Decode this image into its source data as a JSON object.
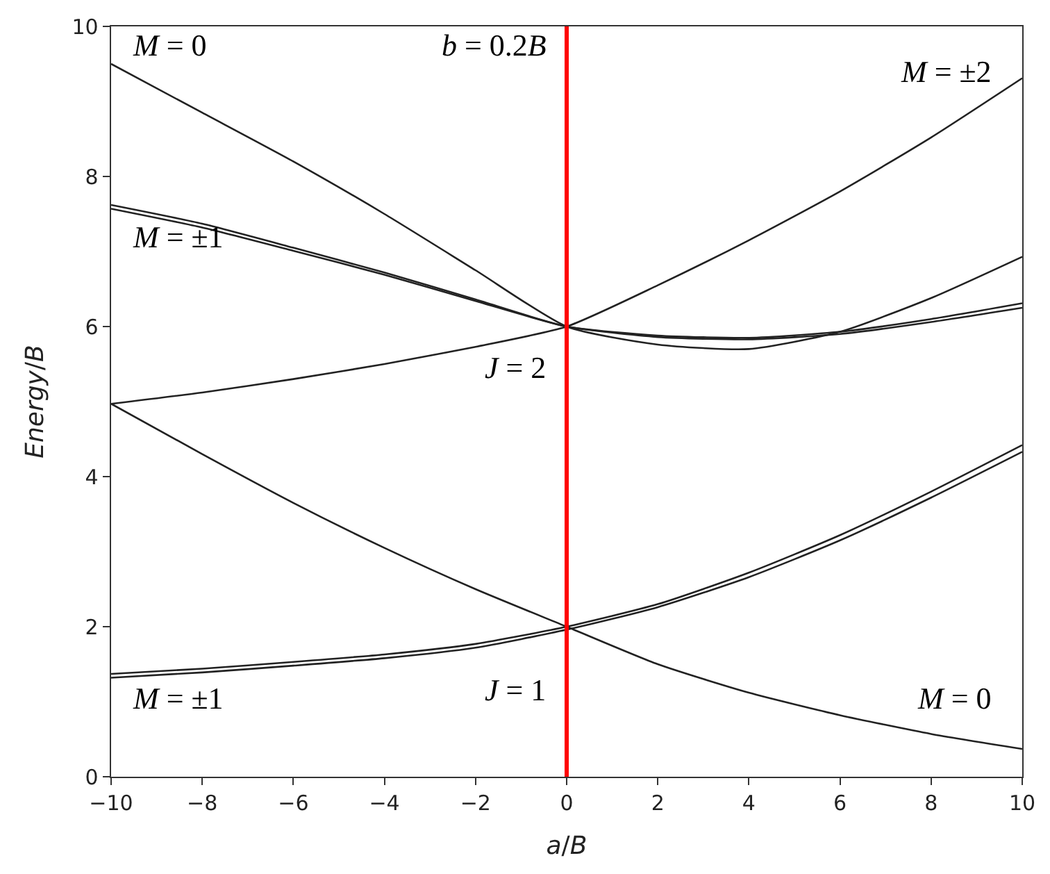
{
  "chart_data": {
    "type": "line",
    "xlabel": "a/B",
    "ylabel": "Energy/B",
    "x": [
      -10,
      -8,
      -6,
      -4,
      -2,
      0,
      2,
      4,
      6,
      8,
      10
    ],
    "xlim": [
      -10,
      10
    ],
    "xticks": [
      -10,
      -8,
      -6,
      -4,
      -2,
      0,
      2,
      4,
      6,
      8,
      10
    ],
    "ylim": [
      0,
      10
    ],
    "yticks": [
      0,
      2,
      4,
      6,
      8,
      10
    ],
    "marker": "none",
    "line_style": "solid",
    "series": [
      {
        "color": "#222222",
        "values": [
          9.5,
          8.85,
          8.2,
          7.5,
          6.75,
          6.0,
          5.76,
          5.7,
          5.93,
          6.38,
          6.93
        ]
      },
      {
        "color": "#222222",
        "values": [
          7.62,
          7.37,
          7.05,
          6.72,
          6.36,
          6.0,
          5.88,
          5.85,
          5.93,
          6.1,
          6.31
        ]
      },
      {
        "color": "#222222",
        "values": [
          7.57,
          7.32,
          7.01,
          6.69,
          6.34,
          6.0,
          5.86,
          5.83,
          5.9,
          6.06,
          6.25
        ]
      },
      {
        "color": "#222222",
        "values": [
          4.97,
          5.12,
          5.3,
          5.5,
          5.73,
          6.0,
          6.55,
          7.15,
          7.8,
          8.52,
          9.31
        ]
      },
      {
        "color": "#222222",
        "values": [
          4.97,
          4.3,
          3.65,
          3.05,
          2.5,
          2.0,
          1.5,
          1.12,
          0.82,
          0.57,
          0.37
        ]
      },
      {
        "color": "#222222",
        "values": [
          1.37,
          1.44,
          1.53,
          1.63,
          1.77,
          2.0,
          2.3,
          2.72,
          3.22,
          3.8,
          4.42
        ]
      },
      {
        "color": "#222222",
        "values": [
          1.32,
          1.39,
          1.48,
          1.58,
          1.72,
          1.96,
          2.26,
          2.66,
          3.15,
          3.72,
          4.33
        ]
      }
    ],
    "ref_lines": [
      {
        "axis": "x",
        "value": 0,
        "color": "#ff0000"
      }
    ],
    "annotations": [
      "M = 0",
      "b = 0.2B",
      "M = ±2",
      "M = ±1",
      "J = 2",
      "J = 1",
      "M = ±1",
      "M = 0"
    ]
  }
}
